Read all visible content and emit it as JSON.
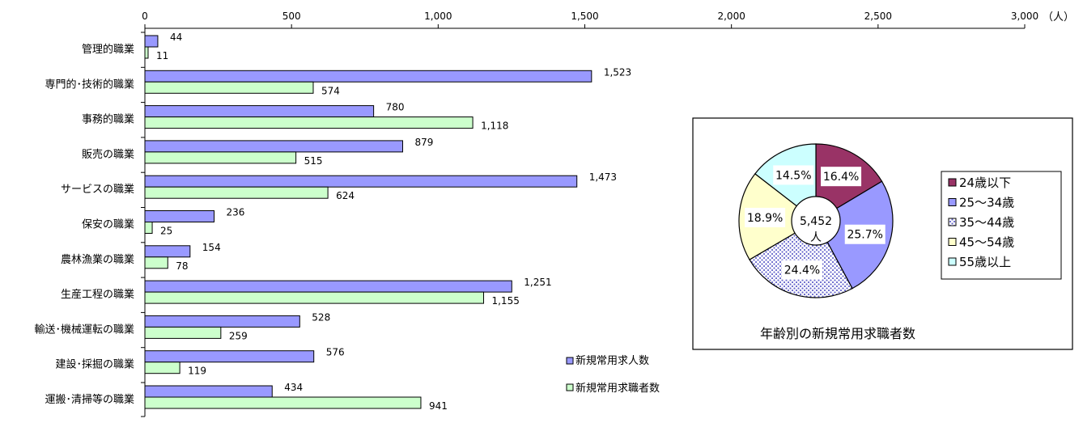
{
  "chart_data": [
    {
      "type": "bar",
      "orientation": "horizontal",
      "unit": "（人）",
      "xlim": [
        0,
        3000
      ],
      "x_ticks": [
        "0",
        "500",
        "1,000",
        "1,500",
        "2,000",
        "2,500",
        "3,000"
      ],
      "categories": [
        "管理的職業",
        "専門的･技術的職業",
        "事務的職業",
        "販売の職業",
        "サービスの職業",
        "保安の職業",
        "農林漁業の職業",
        "生産工程の職業",
        "輸送･機械運転の職業",
        "建設･採掘の職業",
        "運搬･清掃等の職業"
      ],
      "series": [
        {
          "name": "新規常用求人数",
          "color": "#9999ff",
          "values": [
            44,
            1523,
            780,
            879,
            1473,
            236,
            154,
            1251,
            528,
            576,
            434
          ],
          "labels": [
            "44",
            "1,523",
            "780",
            "879",
            "1,473",
            "236",
            "154",
            "1,251",
            "528",
            "576",
            "434"
          ]
        },
        {
          "name": "新規常用求職者数",
          "color": "#ccffcc",
          "values": [
            11,
            574,
            1118,
            515,
            624,
            25,
            78,
            1155,
            259,
            119,
            941
          ],
          "labels": [
            "11",
            "574",
            "1,118",
            "515",
            "624",
            "25",
            "78",
            "1,155",
            "259",
            "119",
            "941"
          ]
        }
      ],
      "grid": false,
      "legend": "bottom-right"
    },
    {
      "type": "pie",
      "title": "年齢別の新規常用求職者数",
      "center_label": [
        "5,452",
        "人"
      ],
      "slices": [
        {
          "label": "24歳以下",
          "value": 16.4,
          "text": "16.4%",
          "color": "#993366",
          "pattern": "solid"
        },
        {
          "label": "25～34歳",
          "value": 25.7,
          "text": "25.7%",
          "color": "#9999ff",
          "pattern": "solid"
        },
        {
          "label": "35～44歳",
          "value": 24.4,
          "text": "24.4%",
          "color": "#9999ff",
          "pattern": "dots"
        },
        {
          "label": "45～54歳",
          "value": 18.9,
          "text": "18.9%",
          "color": "#ffffcc",
          "pattern": "solid"
        },
        {
          "label": "55歳以上",
          "value": 14.5,
          "text": "14.5%",
          "color": "#ccffff",
          "pattern": "solid"
        }
      ],
      "legend": "right"
    }
  ]
}
